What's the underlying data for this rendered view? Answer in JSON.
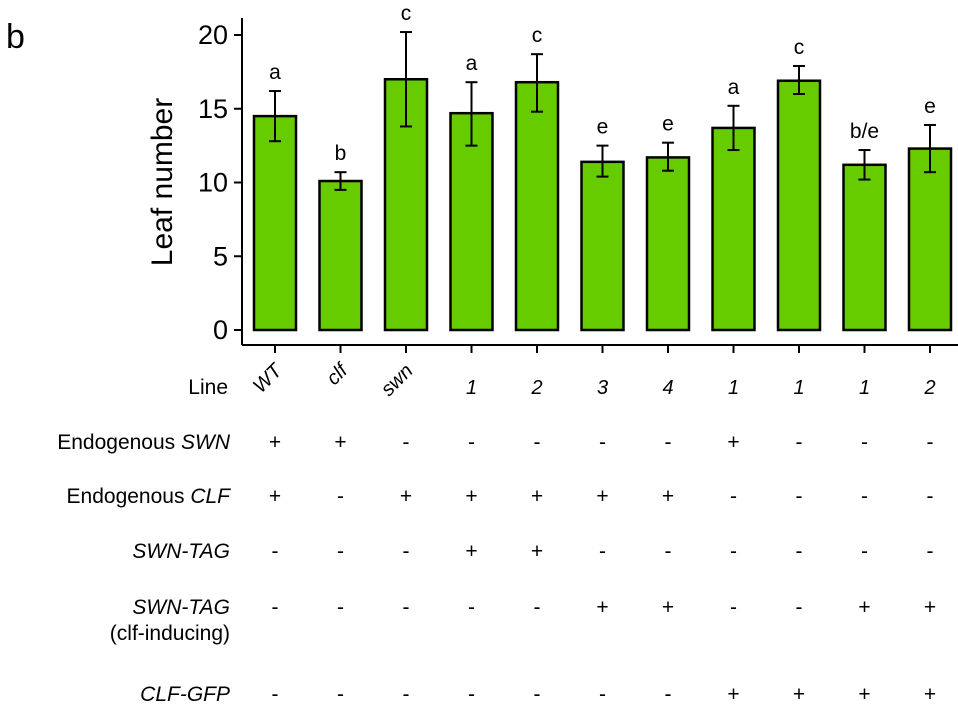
{
  "panel_label": "b",
  "chart_data": {
    "type": "bar",
    "ylabel": "Leaf number",
    "ylim": [
      0,
      21
    ],
    "yticks": [
      "0",
      "5",
      "10",
      "15",
      "20"
    ],
    "bar_color": "#66cc00",
    "categories": [
      "WT",
      "clf",
      "swn",
      "1",
      "2",
      "3",
      "4",
      "1",
      "1",
      "1",
      "2"
    ],
    "category_italic": true,
    "category_rotated": [
      true,
      true,
      true,
      false,
      false,
      false,
      false,
      false,
      false,
      false,
      false
    ],
    "values": [
      14.5,
      10.1,
      17.0,
      14.7,
      16.8,
      11.4,
      11.7,
      13.7,
      16.9,
      11.2,
      12.3
    ],
    "error_low": [
      12.8,
      9.5,
      13.8,
      12.5,
      14.8,
      10.4,
      10.8,
      12.2,
      16.0,
      10.2,
      10.7
    ],
    "error_high": [
      16.2,
      10.7,
      20.2,
      16.8,
      18.7,
      12.5,
      12.7,
      15.2,
      17.9,
      12.2,
      13.9
    ],
    "significance": [
      "a",
      "b",
      "c",
      "a",
      "c",
      "e",
      "e",
      "a",
      "c",
      "b/e",
      "e"
    ]
  },
  "line_label": "Line",
  "table": {
    "rows": [
      {
        "prefix": "Endogenous ",
        "name": "SWN",
        "suffix": "",
        "values": [
          "+",
          "+",
          "-",
          "-",
          "-",
          "-",
          "-",
          "+",
          "-",
          "-",
          "-"
        ]
      },
      {
        "prefix": "Endogenous ",
        "name": "CLF",
        "suffix": "",
        "values": [
          "+",
          "-",
          "+",
          "+",
          "+",
          "+",
          "+",
          "-",
          "-",
          "-",
          "-"
        ]
      },
      {
        "prefix": "",
        "name": "SWN-TAG",
        "suffix": "",
        "values": [
          "-",
          "-",
          "-",
          "+",
          "+",
          "-",
          "-",
          "-",
          "-",
          "-",
          "-"
        ]
      },
      {
        "prefix": "",
        "name": "SWN-TAG",
        "suffix": "(clf-inducing)",
        "values": [
          "-",
          "-",
          "-",
          "-",
          "-",
          "+",
          "+",
          "-",
          "-",
          "+",
          "+"
        ]
      },
      {
        "prefix": "",
        "name": "CLF-GFP",
        "suffix": "",
        "values": [
          "-",
          "-",
          "-",
          "-",
          "-",
          "-",
          "-",
          "+",
          "+",
          "+",
          "+"
        ]
      }
    ]
  }
}
